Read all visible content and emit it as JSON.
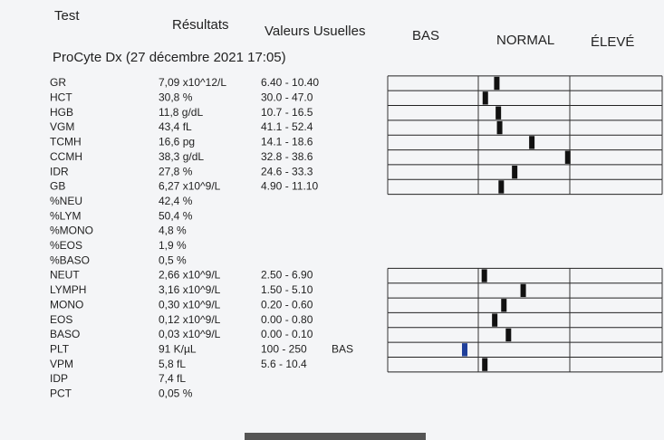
{
  "header": {
    "test": "Test",
    "results": "Résultats",
    "ranges": "Valeurs Usuelles",
    "low": "BAS",
    "normal": "NORMAL",
    "high": "ÉLEVÉ"
  },
  "subtitle": "ProCyte Dx (27 décembre 2021 17:05)",
  "rows": [
    {
      "test": "GR",
      "result": "7,09 x10^12/L",
      "range": "6.40 - 10.40"
    },
    {
      "test": "HCT",
      "result": "30,8 %",
      "range": "30.0 - 47.0"
    },
    {
      "test": "HGB",
      "result": "11,8 g/dL",
      "range": "10.7 - 16.5"
    },
    {
      "test": "VGM",
      "result": "43,4 fL",
      "range": "41.1 - 52.4"
    },
    {
      "test": "TCMH",
      "result": "16,6 pg",
      "range": "14.1 - 18.6"
    },
    {
      "test": "CCMH",
      "result": "38,3 g/dL",
      "range": "32.8 - 38.6"
    },
    {
      "test": "IDR",
      "result": "27,8 %",
      "range": "24.6 - 33.3"
    },
    {
      "test": "GB",
      "result": "6,27 x10^9/L",
      "range": "4.90 - 11.10"
    },
    {
      "test": "%NEU",
      "result": "42,4 %"
    },
    {
      "test": "%LYM",
      "result": "50,4 %"
    },
    {
      "test": "%MONO",
      "result": "4,8 %"
    },
    {
      "test": "%EOS",
      "result": "1,9 %"
    },
    {
      "test": "%BASO",
      "result": "0,5 %"
    },
    {
      "test": "NEUT",
      "result": "2,66 x10^9/L",
      "range": "2.50 - 6.90"
    },
    {
      "test": "LYMPH",
      "result": "3,16 x10^9/L",
      "range": "1.50 - 5.10"
    },
    {
      "test": "MONO",
      "result": "0,30 x10^9/L",
      "range": "0.20 - 0.60"
    },
    {
      "test": "EOS",
      "result": "0,12 x10^9/L",
      "range": "0.00 - 0.80"
    },
    {
      "test": "BASO",
      "result": "0,03 x10^9/L",
      "range": "0.00 - 0.10"
    },
    {
      "test": "PLT",
      "result": "91 K/µL",
      "range": "100 - 250",
      "flag": "BAS"
    },
    {
      "test": "VPM",
      "result": "5,8 fL",
      "range": "5.6 - 10.4"
    },
    {
      "test": "IDP",
      "result": "7,4 fL"
    },
    {
      "test": "PCT",
      "result": "0,05 %"
    }
  ]
}
